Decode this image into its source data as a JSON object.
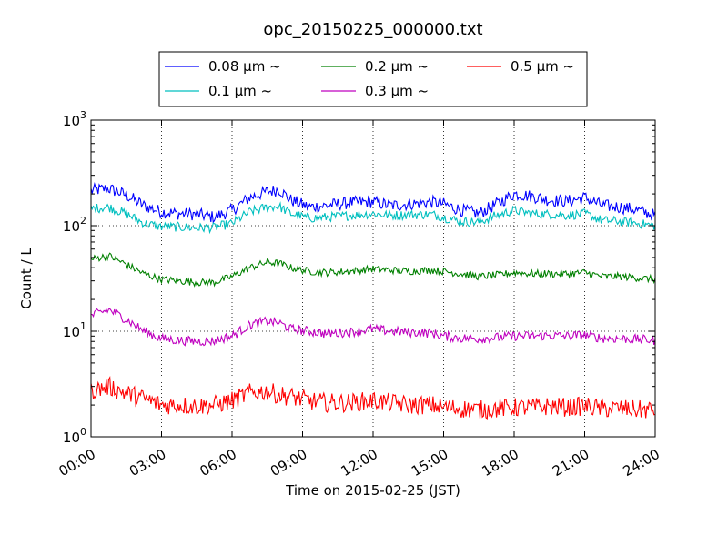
{
  "chart_data": {
    "type": "line",
    "title": "opc_20150225_000000.txt",
    "xlabel": "Time on 2015-02-25 (JST)",
    "ylabel": "Count / L",
    "x_range": [
      "00:00",
      "24:00"
    ],
    "x_ticks": [
      "00:00",
      "03:00",
      "06:00",
      "09:00",
      "12:00",
      "15:00",
      "18:00",
      "21:00",
      "24:00"
    ],
    "y_scale": "log",
    "ylim": [
      1,
      1000
    ],
    "y_ticks": [
      {
        "base": "10",
        "exp": "0"
      },
      {
        "base": "10",
        "exp": "1"
      },
      {
        "base": "10",
        "exp": "2"
      },
      {
        "base": "10",
        "exp": "3"
      }
    ],
    "grid": true,
    "legend_position": "top-center (outside plot)",
    "series": [
      {
        "name": "0.08 μm ~",
        "color": "#0000ff",
        "x": [
          "00:00",
          "00:45",
          "01:30",
          "02:15",
          "03:00",
          "03:45",
          "04:30",
          "05:15",
          "06:00",
          "06:45",
          "07:30",
          "08:00",
          "08:30",
          "09:15",
          "10:00",
          "11:00",
          "12:00",
          "12:45",
          "13:30",
          "14:30",
          "15:00",
          "15:45",
          "16:30",
          "17:15",
          "18:00",
          "18:45",
          "19:30",
          "20:15",
          "21:00",
          "21:45",
          "22:30",
          "23:15",
          "24:00"
        ],
        "values": [
          215,
          225,
          195,
          155,
          135,
          130,
          128,
          120,
          140,
          185,
          210,
          220,
          175,
          150,
          155,
          165,
          168,
          155,
          160,
          168,
          160,
          140,
          130,
          160,
          200,
          190,
          175,
          170,
          185,
          155,
          150,
          140,
          125
        ]
      },
      {
        "name": "0.1 μm ~",
        "color": "#00bfbf",
        "x": [
          "00:00",
          "00:45",
          "01:30",
          "02:15",
          "03:00",
          "03:45",
          "04:30",
          "05:15",
          "06:00",
          "06:45",
          "07:30",
          "08:00",
          "08:30",
          "09:15",
          "10:00",
          "11:00",
          "12:00",
          "12:45",
          "13:30",
          "14:30",
          "15:00",
          "15:45",
          "16:30",
          "17:15",
          "18:00",
          "18:45",
          "19:30",
          "20:15",
          "21:00",
          "21:45",
          "22:30",
          "23:15",
          "24:00"
        ],
        "values": [
          145,
          150,
          130,
          105,
          98,
          97,
          95,
          96,
          105,
          135,
          150,
          152,
          130,
          118,
          120,
          125,
          130,
          125,
          127,
          128,
          120,
          110,
          108,
          125,
          140,
          130,
          128,
          125,
          130,
          112,
          110,
          105,
          100
        ]
      },
      {
        "name": "0.2 μm ~",
        "color": "#008000",
        "x": [
          "00:00",
          "00:45",
          "01:30",
          "02:15",
          "03:00",
          "03:45",
          "04:30",
          "05:15",
          "06:00",
          "06:45",
          "07:30",
          "08:00",
          "08:30",
          "09:15",
          "10:00",
          "11:00",
          "12:00",
          "12:45",
          "13:30",
          "14:30",
          "15:00",
          "15:45",
          "16:30",
          "17:15",
          "18:00",
          "18:45",
          "19:30",
          "20:15",
          "21:00",
          "21:45",
          "22:30",
          "23:15",
          "24:00"
        ],
        "values": [
          48,
          52,
          43,
          35,
          31,
          30,
          29,
          29,
          33,
          40,
          45,
          44,
          40,
          37,
          36,
          37,
          39,
          38,
          37,
          38,
          37,
          35,
          33,
          34,
          36,
          35,
          35,
          35,
          36,
          33,
          33,
          32,
          31
        ]
      },
      {
        "name": "0.3 μm ~",
        "color": "#bf00bf",
        "x": [
          "00:00",
          "00:45",
          "01:30",
          "02:15",
          "03:00",
          "03:45",
          "04:30",
          "05:15",
          "06:00",
          "06:45",
          "07:30",
          "08:00",
          "08:30",
          "09:15",
          "10:00",
          "11:00",
          "12:00",
          "12:45",
          "13:30",
          "14:30",
          "15:00",
          "15:45",
          "16:30",
          "17:15",
          "18:00",
          "18:45",
          "19:30",
          "20:15",
          "21:00",
          "21:45",
          "22:30",
          "23:15",
          "24:00"
        ],
        "values": [
          14,
          16,
          13,
          10,
          8.5,
          8.2,
          8.0,
          8.1,
          9.0,
          11.5,
          12.5,
          12.0,
          10.5,
          10.0,
          9.5,
          9.8,
          10.5,
          10.0,
          9.8,
          9.6,
          9.0,
          8.6,
          8.5,
          8.7,
          9.0,
          9.0,
          9.1,
          9.0,
          9.2,
          8.6,
          8.5,
          8.4,
          8.2
        ]
      },
      {
        "name": "0.5 μm ~",
        "color": "#ff0000",
        "x": [
          "00:00",
          "00:45",
          "01:30",
          "02:15",
          "03:00",
          "03:45",
          "04:30",
          "05:15",
          "06:00",
          "06:45",
          "07:30",
          "08:00",
          "08:30",
          "09:15",
          "10:00",
          "11:00",
          "12:00",
          "12:45",
          "13:30",
          "14:30",
          "15:00",
          "15:45",
          "16:30",
          "17:15",
          "18:00",
          "18:45",
          "19:30",
          "20:15",
          "21:00",
          "21:45",
          "22:30",
          "23:15",
          "24:00"
        ],
        "values": [
          2.7,
          3.0,
          2.6,
          2.3,
          2.0,
          2.0,
          1.95,
          2.0,
          2.2,
          2.6,
          2.7,
          2.5,
          2.4,
          2.2,
          2.1,
          2.1,
          2.2,
          2.1,
          2.0,
          2.0,
          1.9,
          1.85,
          1.8,
          1.85,
          1.9,
          1.9,
          1.95,
          1.9,
          1.95,
          1.85,
          1.85,
          1.8,
          1.8
        ]
      }
    ]
  }
}
